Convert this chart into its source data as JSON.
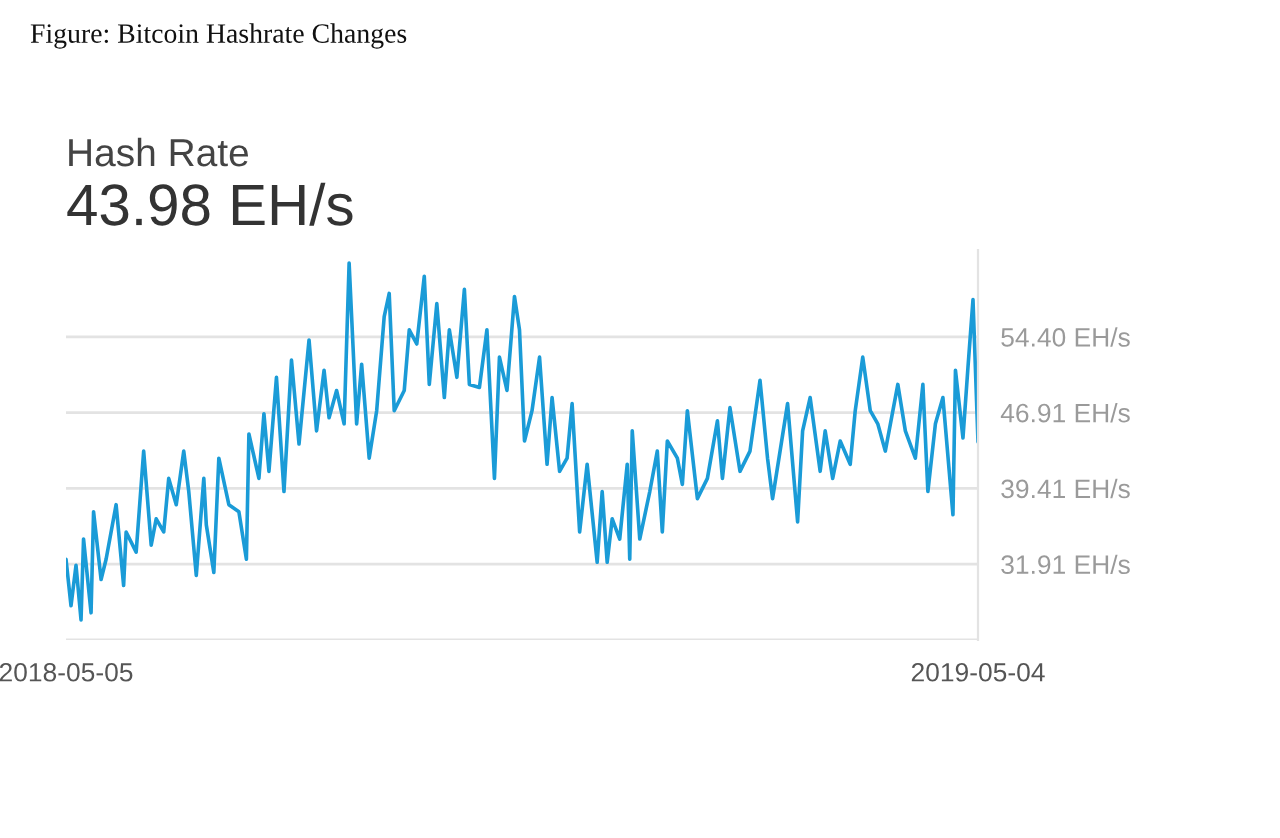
{
  "chart_data": {
    "type": "line",
    "title": "Figure: Bitcoin Hashrate Changes",
    "subtitle": "Hash Rate",
    "annotations": [
      "43.98 EH/s"
    ],
    "x": [
      "2018-05-05",
      "2018-05-07",
      "2018-05-09",
      "2018-05-11",
      "2018-05-12",
      "2018-05-15",
      "2018-05-16",
      "2018-05-19",
      "2018-05-21",
      "2018-05-25",
      "2018-05-28",
      "2018-05-29",
      "2018-06-02",
      "2018-06-05",
      "2018-06-08",
      "2018-06-10",
      "2018-06-13",
      "2018-06-15",
      "2018-06-18",
      "2018-06-21",
      "2018-06-23",
      "2018-06-26",
      "2018-06-29",
      "2018-06-30",
      "2018-07-03",
      "2018-07-05",
      "2018-07-09",
      "2018-07-13",
      "2018-07-16",
      "2018-07-17",
      "2018-07-21",
      "2018-07-23",
      "2018-07-25",
      "2018-07-28",
      "2018-07-31",
      "2018-08-03",
      "2018-08-06",
      "2018-08-10",
      "2018-08-13",
      "2018-08-16",
      "2018-08-18",
      "2018-08-21",
      "2018-08-24",
      "2018-08-26",
      "2018-08-29",
      "2018-08-31",
      "2018-09-03",
      "2018-09-06",
      "2018-09-09",
      "2018-09-11",
      "2018-09-13",
      "2018-09-17",
      "2018-09-19",
      "2018-09-22",
      "2018-09-25",
      "2018-09-27",
      "2018-09-30",
      "2018-10-03",
      "2018-10-05",
      "2018-10-08",
      "2018-10-11",
      "2018-10-13",
      "2018-10-17",
      "2018-10-20",
      "2018-10-23",
      "2018-10-25",
      "2018-10-28",
      "2018-10-31",
      "2018-11-02",
      "2018-11-04",
      "2018-11-07",
      "2018-11-10",
      "2018-11-13",
      "2018-11-15",
      "2018-11-18",
      "2018-11-21",
      "2018-11-23",
      "2018-11-26",
      "2018-11-29",
      "2018-12-03",
      "2018-12-05",
      "2018-12-07",
      "2018-12-09",
      "2018-12-12",
      "2018-12-15",
      "2018-12-16",
      "2018-12-17",
      "2018-12-20",
      "2018-12-24",
      "2018-12-27",
      "2018-12-29",
      "2018-12-31",
      "2019-01-04",
      "2019-01-06",
      "2019-01-08",
      "2019-01-12",
      "2019-01-16",
      "2019-01-20",
      "2019-01-22",
      "2019-01-25",
      "2019-01-29",
      "2019-02-02",
      "2019-02-06",
      "2019-02-09",
      "2019-02-11",
      "2019-02-14",
      "2019-02-17",
      "2019-02-21",
      "2019-02-23",
      "2019-02-26",
      "2019-03-02",
      "2019-03-04",
      "2019-03-07",
      "2019-03-10",
      "2019-03-14",
      "2019-03-16",
      "2019-03-19",
      "2019-03-22",
      "2019-03-25",
      "2019-03-28",
      "2019-04-02",
      "2019-04-05",
      "2019-04-09",
      "2019-04-12",
      "2019-04-14",
      "2019-04-17",
      "2019-04-20",
      "2019-04-24",
      "2019-04-25",
      "2019-04-28",
      "2019-04-30",
      "2019-05-02",
      "2019-05-04"
    ],
    "series": [
      {
        "color": "#1a9bd7",
        "values": [
          32.4,
          27.8,
          31.8,
          26.4,
          34.4,
          27.1,
          37.1,
          30.4,
          32.4,
          37.8,
          29.8,
          35.1,
          33.1,
          43.1,
          33.8,
          36.4,
          35.1,
          40.4,
          37.8,
          43.1,
          39.1,
          30.8,
          40.4,
          35.8,
          31.1,
          42.4,
          37.8,
          37.1,
          32.4,
          44.8,
          40.4,
          46.8,
          41.1,
          50.4,
          39.1,
          52.1,
          43.8,
          54.1,
          45.1,
          51.1,
          46.4,
          49.1,
          45.8,
          61.7,
          45.8,
          51.7,
          42.4,
          47.1,
          56.4,
          58.7,
          47.1,
          49.1,
          55.1,
          53.7,
          60.4,
          49.7,
          57.7,
          48.4,
          55.1,
          50.4,
          59.1,
          49.7,
          49.4,
          55.1,
          40.4,
          52.4,
          49.1,
          58.4,
          55.1,
          44.1,
          47.1,
          52.4,
          41.8,
          48.4,
          41.1,
          42.4,
          47.8,
          35.1,
          41.8,
          32.1,
          39.1,
          32.1,
          36.4,
          34.4,
          41.8,
          32.4,
          45.1,
          34.4,
          39.1,
          43.1,
          35.1,
          44.1,
          42.4,
          39.8,
          47.1,
          38.4,
          40.4,
          46.1,
          40.4,
          47.4,
          41.1,
          43.1,
          50.1,
          42.4,
          38.4,
          43.1,
          47.8,
          36.1,
          45.1,
          48.4,
          41.1,
          45.1,
          40.4,
          44.1,
          41.8,
          47.1,
          52.4,
          47.1,
          45.8,
          43.1,
          49.7,
          45.1,
          42.4,
          49.7,
          39.1,
          45.8,
          48.4,
          36.8,
          51.1,
          44.4,
          51.4,
          58.1,
          44.0
        ]
      }
    ],
    "xlim": [
      "2018-05-05",
      "2019-05-04"
    ],
    "xticks": [
      "2018-05-05",
      "2019-05-04"
    ],
    "ylim": [
      24.41,
      63
    ],
    "yticks": [
      {
        "value": 24.41,
        "label": null
      },
      {
        "value": 31.91,
        "label": "31.91 EH/s"
      },
      {
        "value": 39.41,
        "label": "39.41 EH/s"
      },
      {
        "value": 46.91,
        "label": "46.91 EH/s"
      },
      {
        "value": 54.4,
        "label": "54.40 EH/s"
      }
    ],
    "grid": "y",
    "marker": "none",
    "line_style": "solid"
  }
}
